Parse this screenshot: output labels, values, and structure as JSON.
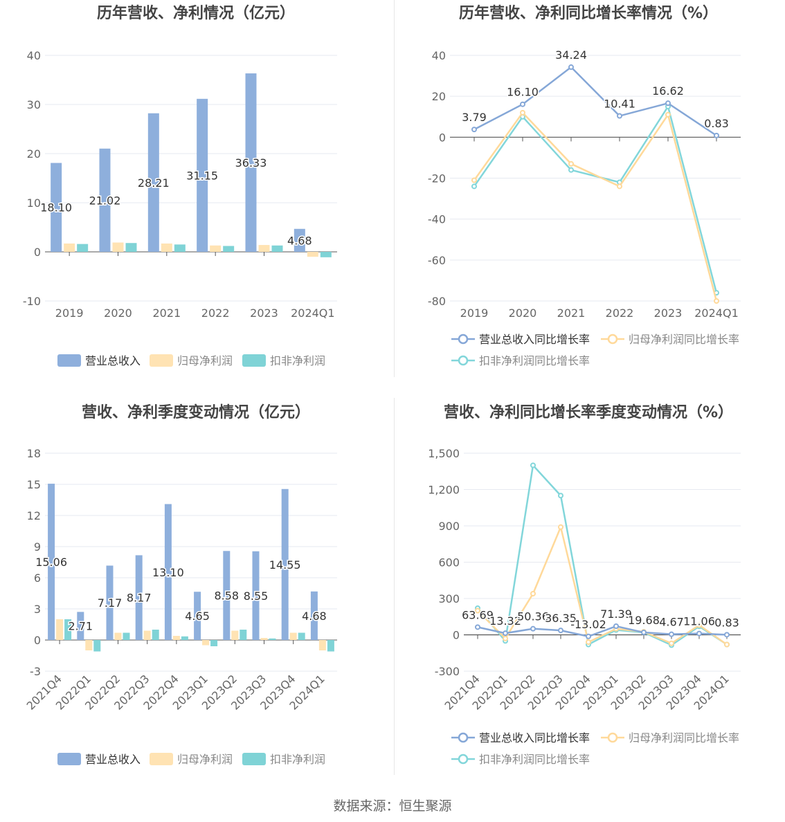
{
  "colors": {
    "revenue_bar": "#8EAFDC",
    "parent_profit_bar": "#FFE3B3",
    "deducted_profit_bar": "#7FD3D6",
    "revenue_line": "#85A7D7",
    "parent_profit_line": "#FFD99A",
    "deducted_profit_line": "#82D6DA",
    "grid": "#E6E9F0",
    "axis_text": "#666666",
    "title_text": "#444444"
  },
  "source_text": "数据来源：恒生聚源",
  "chart_data": [
    {
      "type": "bar",
      "title": "历年营收、净利情况（亿元）",
      "categories": [
        "2019",
        "2020",
        "2021",
        "2022",
        "2023",
        "2024Q1"
      ],
      "ylim": [
        -10,
        40
      ],
      "yticks": [
        -10,
        0,
        10,
        20,
        30,
        40
      ],
      "grid": true,
      "legend_position": "bottom",
      "series": [
        {
          "name": "营业总收入",
          "values": [
            18.1,
            21.02,
            28.21,
            31.15,
            36.33,
            4.68
          ],
          "labels": [
            "18.10",
            "21.02",
            "28.21",
            "31.15",
            "36.33",
            "4.68"
          ]
        },
        {
          "name": "归母净利润",
          "values": [
            1.7,
            1.9,
            1.7,
            1.3,
            1.4,
            -1.0
          ]
        },
        {
          "name": "扣非净利润",
          "values": [
            1.6,
            1.8,
            1.5,
            1.2,
            1.3,
            -1.1
          ]
        }
      ]
    },
    {
      "type": "line",
      "title": "历年营收、净利同比增长率情况（%）",
      "categories": [
        "2019",
        "2020",
        "2021",
        "2022",
        "2023",
        "2024Q1"
      ],
      "ylim": [
        -80,
        40
      ],
      "yticks": [
        -80,
        -60,
        -40,
        -20,
        0,
        20,
        40
      ],
      "grid": true,
      "legend_position": "bottom",
      "series": [
        {
          "name": "营业总收入同比增长率",
          "values": [
            3.79,
            16.1,
            34.24,
            10.41,
            16.62,
            0.83
          ],
          "labels": [
            "3.79",
            "16.10",
            "34.24",
            "10.41",
            "16.62",
            "0.83"
          ]
        },
        {
          "name": "归母净利润同比增长率",
          "values": [
            -21,
            12,
            -13,
            -24,
            11,
            -80
          ]
        },
        {
          "name": "扣非净利润同比增长率",
          "values": [
            -24,
            10,
            -16,
            -22,
            15,
            -76
          ]
        }
      ]
    },
    {
      "type": "bar",
      "title": "营收、净利季度变动情况（亿元）",
      "categories": [
        "2021Q4",
        "2022Q1",
        "2022Q2",
        "2022Q3",
        "2022Q4",
        "2023Q1",
        "2023Q2",
        "2023Q3",
        "2023Q4",
        "2024Q1"
      ],
      "ylim": [
        -3,
        18
      ],
      "yticks": [
        -3,
        0,
        3,
        6,
        9,
        12,
        15,
        18
      ],
      "grid": true,
      "legend_position": "bottom",
      "series": [
        {
          "name": "营业总收入",
          "values": [
            15.06,
            2.71,
            7.17,
            8.17,
            13.1,
            4.65,
            8.58,
            8.55,
            14.55,
            4.68
          ],
          "labels": [
            "15.06",
            "2.71",
            "7.17",
            "8.17",
            "13.10",
            "4.65",
            "8.58",
            "8.55",
            "14.55",
            "4.68"
          ]
        },
        {
          "name": "归母净利润",
          "values": [
            2.0,
            -1.0,
            0.7,
            0.9,
            0.4,
            -0.5,
            0.9,
            0.2,
            0.7,
            -1.0
          ]
        },
        {
          "name": "扣非净利润",
          "values": [
            2.0,
            -1.1,
            0.7,
            1.0,
            0.35,
            -0.6,
            1.0,
            0.15,
            0.7,
            -1.1
          ]
        }
      ]
    },
    {
      "type": "line",
      "title": "营收、净利同比增长率季度变动情况（%）",
      "categories": [
        "2021Q4",
        "2022Q1",
        "2022Q2",
        "2022Q3",
        "2022Q4",
        "2023Q1",
        "2023Q2",
        "2023Q3",
        "2023Q4",
        "2024Q1"
      ],
      "ylim": [
        -300,
        1500
      ],
      "yticks": [
        -300,
        0,
        300,
        600,
        900,
        1200,
        1500
      ],
      "ytick_labels": [
        "-300",
        "0",
        "300",
        "600",
        "900",
        "1,200",
        "1,500"
      ],
      "grid": true,
      "legend_position": "bottom",
      "series": [
        {
          "name": "营业总收入同比增长率",
          "values": [
            63.69,
            13.32,
            50.36,
            36.35,
            -13.02,
            71.39,
            19.68,
            4.67,
            11.06,
            0.83
          ],
          "labels": [
            "63.69",
            "13.32",
            "50.36",
            "36.35",
            "-13.02",
            "71.39",
            "19.68",
            "4.67",
            "11.06",
            "0.83"
          ]
        },
        {
          "name": "归母净利润同比增长率",
          "values": [
            200,
            -30,
            340,
            890,
            -60,
            50,
            25,
            -70,
            80,
            -80
          ]
        },
        {
          "name": "扣非净利润同比增长率",
          "values": [
            220,
            -50,
            1400,
            1150,
            -80,
            40,
            20,
            -85,
            70,
            -80
          ]
        }
      ]
    }
  ]
}
